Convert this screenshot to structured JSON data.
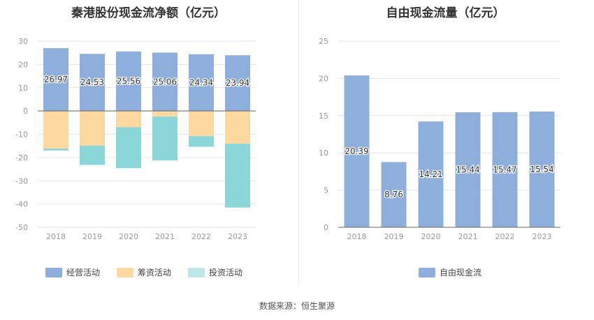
{
  "footer": {
    "source": "数据来源：恒生聚源"
  },
  "chart_data": [
    {
      "type": "bar",
      "stacked": true,
      "title": "秦港股份现金流净额（亿元）",
      "categories": [
        "2018",
        "2019",
        "2020",
        "2021",
        "2022",
        "2023"
      ],
      "ylim": [
        -50,
        30
      ],
      "yticks": [
        30,
        20,
        10,
        0,
        -10,
        -20,
        -30,
        -40,
        -50
      ],
      "grid": true,
      "legend_position": "bottom",
      "series": [
        {
          "name": "经营活动",
          "color": "#8eaedb",
          "values": [
            26.97,
            24.53,
            25.56,
            25.06,
            24.34,
            23.94
          ],
          "labels": [
            "26.97",
            "24.53",
            "25.56",
            "25.06",
            "24.34",
            "23.94"
          ]
        },
        {
          "name": "筹资活动",
          "color": "#fdd9a0",
          "values": [
            -16.2,
            -14.9,
            -7.0,
            -2.4,
            -10.8,
            -14.1
          ]
        },
        {
          "name": "投资活动",
          "color": "#8ad6d8",
          "legend_color": "#bfe7e9",
          "values": [
            -0.8,
            -8.3,
            -17.6,
            -18.9,
            -4.6,
            -27.4
          ]
        }
      ]
    },
    {
      "type": "bar",
      "title": "自由现金流量（亿元）",
      "categories": [
        "2018",
        "2019",
        "2020",
        "2021",
        "2022",
        "2023"
      ],
      "ylim": [
        0,
        25
      ],
      "yticks": [
        25,
        20,
        15,
        10,
        5,
        0
      ],
      "grid": true,
      "legend_position": "bottom",
      "series": [
        {
          "name": "自由现金流",
          "color": "#8eaedb",
          "values": [
            20.39,
            8.76,
            14.21,
            15.44,
            15.47,
            15.54
          ],
          "labels": [
            "20.39",
            "8.76",
            "14.21",
            "15.44",
            "15.47",
            "15.54"
          ]
        }
      ]
    }
  ]
}
